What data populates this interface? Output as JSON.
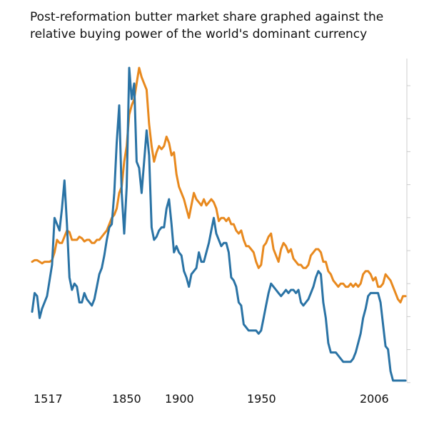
{
  "chart_data": {
    "type": "line",
    "title": "Post-reformation butter market share graphed against the relative buying power of the world's dominant currency",
    "xlabel": "",
    "ylabel": "",
    "x_tick_labels": [
      "1517",
      "1850",
      "1900",
      "1950",
      "2006"
    ],
    "grid": false,
    "legend": "none",
    "series": [
      {
        "color": "#e8891e",
        "points": [
          [
            0,
            0.38
          ],
          [
            2,
            0.385
          ],
          [
            4,
            0.385
          ],
          [
            6,
            0.38
          ],
          [
            8,
            0.375
          ],
          [
            10,
            0.38
          ],
          [
            12,
            0.38
          ],
          [
            14,
            0.38
          ],
          [
            16,
            0.385
          ],
          [
            18,
            0.41
          ],
          [
            20,
            0.45
          ],
          [
            22,
            0.44
          ],
          [
            24,
            0.44
          ],
          [
            26,
            0.46
          ],
          [
            28,
            0.48
          ],
          [
            30,
            0.475
          ],
          [
            32,
            0.45
          ],
          [
            34,
            0.45
          ],
          [
            36,
            0.45
          ],
          [
            38,
            0.46
          ],
          [
            40,
            0.455
          ],
          [
            42,
            0.445
          ],
          [
            44,
            0.45
          ],
          [
            46,
            0.45
          ],
          [
            48,
            0.44
          ],
          [
            50,
            0.44
          ],
          [
            52,
            0.45
          ],
          [
            54,
            0.45
          ],
          [
            56,
            0.46
          ],
          [
            58,
            0.47
          ],
          [
            60,
            0.48
          ],
          [
            62,
            0.5
          ],
          [
            64,
            0.52
          ],
          [
            66,
            0.53
          ],
          [
            68,
            0.55
          ],
          [
            70,
            0.6
          ],
          [
            72,
            0.62
          ],
          [
            74,
            0.7
          ],
          [
            76,
            0.75
          ],
          [
            78,
            0.85
          ],
          [
            80,
            0.88
          ],
          [
            82,
            0.9
          ],
          [
            84,
            0.95
          ],
          [
            86,
            1.0
          ],
          [
            88,
            0.97
          ],
          [
            90,
            0.95
          ],
          [
            92,
            0.93
          ],
          [
            94,
            0.82
          ],
          [
            96,
            0.75
          ],
          [
            98,
            0.7
          ],
          [
            100,
            0.73
          ],
          [
            102,
            0.75
          ],
          [
            104,
            0.74
          ],
          [
            106,
            0.75
          ],
          [
            108,
            0.78
          ],
          [
            110,
            0.76
          ],
          [
            112,
            0.72
          ],
          [
            114,
            0.73
          ],
          [
            116,
            0.66
          ],
          [
            118,
            0.62
          ],
          [
            120,
            0.6
          ],
          [
            122,
            0.58
          ],
          [
            124,
            0.55
          ],
          [
            126,
            0.52
          ],
          [
            128,
            0.56
          ],
          [
            130,
            0.6
          ],
          [
            132,
            0.58
          ],
          [
            134,
            0.57
          ],
          [
            136,
            0.56
          ],
          [
            138,
            0.58
          ],
          [
            140,
            0.56
          ],
          [
            142,
            0.57
          ],
          [
            144,
            0.58
          ],
          [
            146,
            0.57
          ],
          [
            148,
            0.55
          ],
          [
            150,
            0.51
          ],
          [
            152,
            0.52
          ],
          [
            154,
            0.52
          ],
          [
            156,
            0.51
          ],
          [
            158,
            0.52
          ],
          [
            160,
            0.5
          ],
          [
            162,
            0.5
          ],
          [
            164,
            0.48
          ],
          [
            166,
            0.47
          ],
          [
            168,
            0.48
          ],
          [
            170,
            0.45
          ],
          [
            172,
            0.43
          ],
          [
            174,
            0.43
          ],
          [
            176,
            0.42
          ],
          [
            178,
            0.41
          ],
          [
            180,
            0.38
          ],
          [
            182,
            0.36
          ],
          [
            184,
            0.37
          ],
          [
            186,
            0.43
          ],
          [
            188,
            0.44
          ],
          [
            190,
            0.46
          ],
          [
            192,
            0.47
          ],
          [
            194,
            0.42
          ],
          [
            196,
            0.4
          ],
          [
            198,
            0.38
          ],
          [
            200,
            0.42
          ],
          [
            202,
            0.44
          ],
          [
            204,
            0.43
          ],
          [
            206,
            0.41
          ],
          [
            208,
            0.42
          ],
          [
            210,
            0.39
          ],
          [
            212,
            0.38
          ],
          [
            214,
            0.37
          ],
          [
            216,
            0.37
          ],
          [
            218,
            0.36
          ],
          [
            220,
            0.36
          ],
          [
            222,
            0.37
          ],
          [
            224,
            0.4
          ],
          [
            226,
            0.41
          ],
          [
            228,
            0.42
          ],
          [
            230,
            0.42
          ],
          [
            232,
            0.41
          ],
          [
            234,
            0.38
          ],
          [
            236,
            0.38
          ],
          [
            238,
            0.35
          ],
          [
            240,
            0.34
          ],
          [
            242,
            0.32
          ],
          [
            244,
            0.31
          ],
          [
            246,
            0.3
          ],
          [
            248,
            0.31
          ],
          [
            250,
            0.31
          ],
          [
            252,
            0.3
          ],
          [
            254,
            0.3
          ],
          [
            256,
            0.31
          ],
          [
            258,
            0.3
          ],
          [
            260,
            0.31
          ],
          [
            262,
            0.3
          ],
          [
            264,
            0.31
          ],
          [
            266,
            0.34
          ],
          [
            268,
            0.35
          ],
          [
            270,
            0.35
          ],
          [
            272,
            0.34
          ],
          [
            274,
            0.32
          ],
          [
            276,
            0.33
          ],
          [
            278,
            0.3
          ],
          [
            280,
            0.3
          ],
          [
            282,
            0.31
          ],
          [
            284,
            0.34
          ],
          [
            286,
            0.33
          ],
          [
            288,
            0.32
          ],
          [
            290,
            0.3
          ],
          [
            292,
            0.28
          ],
          [
            294,
            0.26
          ],
          [
            296,
            0.25
          ],
          [
            298,
            0.27
          ],
          [
            300,
            0.27
          ]
        ]
      },
      {
        "color": "#2a73a5",
        "points": [
          [
            0,
            0.22
          ],
          [
            2,
            0.28
          ],
          [
            4,
            0.27
          ],
          [
            6,
            0.2
          ],
          [
            8,
            0.23
          ],
          [
            10,
            0.25
          ],
          [
            12,
            0.27
          ],
          [
            14,
            0.32
          ],
          [
            16,
            0.37
          ],
          [
            18,
            0.52
          ],
          [
            20,
            0.5
          ],
          [
            22,
            0.48
          ],
          [
            24,
            0.55
          ],
          [
            26,
            0.64
          ],
          [
            28,
            0.5
          ],
          [
            30,
            0.33
          ],
          [
            32,
            0.29
          ],
          [
            34,
            0.31
          ],
          [
            36,
            0.3
          ],
          [
            38,
            0.25
          ],
          [
            40,
            0.25
          ],
          [
            42,
            0.28
          ],
          [
            44,
            0.26
          ],
          [
            46,
            0.25
          ],
          [
            48,
            0.24
          ],
          [
            50,
            0.26
          ],
          [
            52,
            0.3
          ],
          [
            54,
            0.34
          ],
          [
            56,
            0.36
          ],
          [
            58,
            0.4
          ],
          [
            60,
            0.45
          ],
          [
            62,
            0.49
          ],
          [
            64,
            0.5
          ],
          [
            66,
            0.6
          ],
          [
            68,
            0.76
          ],
          [
            70,
            0.88
          ],
          [
            72,
            0.6
          ],
          [
            74,
            0.47
          ],
          [
            76,
            0.62
          ],
          [
            78,
            1.0
          ],
          [
            80,
            0.9
          ],
          [
            82,
            0.95
          ],
          [
            84,
            0.7
          ],
          [
            86,
            0.68
          ],
          [
            88,
            0.6
          ],
          [
            90,
            0.7
          ],
          [
            92,
            0.8
          ],
          [
            94,
            0.72
          ],
          [
            96,
            0.49
          ],
          [
            98,
            0.45
          ],
          [
            100,
            0.46
          ],
          [
            102,
            0.48
          ],
          [
            104,
            0.49
          ],
          [
            106,
            0.49
          ],
          [
            108,
            0.55
          ],
          [
            110,
            0.58
          ],
          [
            112,
            0.5
          ],
          [
            114,
            0.41
          ],
          [
            116,
            0.43
          ],
          [
            118,
            0.41
          ],
          [
            120,
            0.4
          ],
          [
            122,
            0.35
          ],
          [
            124,
            0.33
          ],
          [
            126,
            0.3
          ],
          [
            128,
            0.34
          ],
          [
            130,
            0.35
          ],
          [
            132,
            0.36
          ],
          [
            134,
            0.41
          ],
          [
            136,
            0.38
          ],
          [
            138,
            0.38
          ],
          [
            140,
            0.41
          ],
          [
            142,
            0.44
          ],
          [
            144,
            0.48
          ],
          [
            146,
            0.52
          ],
          [
            148,
            0.47
          ],
          [
            150,
            0.45
          ],
          [
            152,
            0.43
          ],
          [
            154,
            0.44
          ],
          [
            156,
            0.44
          ],
          [
            158,
            0.41
          ],
          [
            160,
            0.33
          ],
          [
            162,
            0.32
          ],
          [
            164,
            0.3
          ],
          [
            166,
            0.25
          ],
          [
            168,
            0.24
          ],
          [
            170,
            0.18
          ],
          [
            172,
            0.17
          ],
          [
            174,
            0.16
          ],
          [
            176,
            0.16
          ],
          [
            178,
            0.16
          ],
          [
            180,
            0.16
          ],
          [
            182,
            0.15
          ],
          [
            184,
            0.16
          ],
          [
            186,
            0.2
          ],
          [
            188,
            0.24
          ],
          [
            190,
            0.28
          ],
          [
            192,
            0.31
          ],
          [
            194,
            0.3
          ],
          [
            196,
            0.29
          ],
          [
            198,
            0.28
          ],
          [
            200,
            0.27
          ],
          [
            202,
            0.28
          ],
          [
            204,
            0.29
          ],
          [
            206,
            0.28
          ],
          [
            208,
            0.29
          ],
          [
            210,
            0.29
          ],
          [
            212,
            0.28
          ],
          [
            214,
            0.29
          ],
          [
            216,
            0.25
          ],
          [
            218,
            0.24
          ],
          [
            220,
            0.25
          ],
          [
            222,
            0.26
          ],
          [
            224,
            0.28
          ],
          [
            226,
            0.3
          ],
          [
            228,
            0.33
          ],
          [
            230,
            0.35
          ],
          [
            232,
            0.34
          ],
          [
            234,
            0.25
          ],
          [
            236,
            0.2
          ],
          [
            238,
            0.12
          ],
          [
            240,
            0.09
          ],
          [
            242,
            0.09
          ],
          [
            244,
            0.09
          ],
          [
            246,
            0.08
          ],
          [
            248,
            0.07
          ],
          [
            250,
            0.06
          ],
          [
            252,
            0.06
          ],
          [
            254,
            0.06
          ],
          [
            256,
            0.06
          ],
          [
            258,
            0.07
          ],
          [
            260,
            0.09
          ],
          [
            262,
            0.12
          ],
          [
            264,
            0.15
          ],
          [
            266,
            0.2
          ],
          [
            268,
            0.23
          ],
          [
            270,
            0.27
          ],
          [
            272,
            0.28
          ],
          [
            274,
            0.28
          ],
          [
            276,
            0.28
          ],
          [
            278,
            0.28
          ],
          [
            280,
            0.25
          ],
          [
            282,
            0.18
          ],
          [
            284,
            0.11
          ],
          [
            286,
            0.1
          ],
          [
            288,
            0.03
          ],
          [
            290,
            0.0
          ],
          [
            292,
            0.0
          ],
          [
            294,
            0.0
          ],
          [
            296,
            0.0
          ],
          [
            298,
            0.0
          ],
          [
            300,
            0.0
          ]
        ]
      }
    ]
  }
}
